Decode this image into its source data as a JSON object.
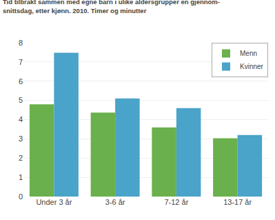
{
  "chart_data": {
    "type": "bar",
    "title": "Tid tilbrakt sammen med egne barn i ulike aldersgrupper en gjennom-\nsnittsdag, etter kjønn. 2010. Timer og minutter",
    "categories": [
      "Under 3 år",
      "3-6 år",
      "7-12 år",
      "13-17 år"
    ],
    "series": [
      {
        "name": "Menn",
        "color": "#6ab04c",
        "values": [
          4.8,
          4.37,
          3.6,
          3.03
        ]
      },
      {
        "name": "Kvinner",
        "color": "#4aa3c8",
        "values": [
          7.48,
          5.1,
          4.6,
          3.2
        ]
      }
    ],
    "ylim": [
      0,
      8
    ],
    "yticks": [
      0,
      1,
      2,
      3,
      4,
      5,
      6,
      7,
      8
    ],
    "grid": true,
    "legend": "upper right"
  }
}
